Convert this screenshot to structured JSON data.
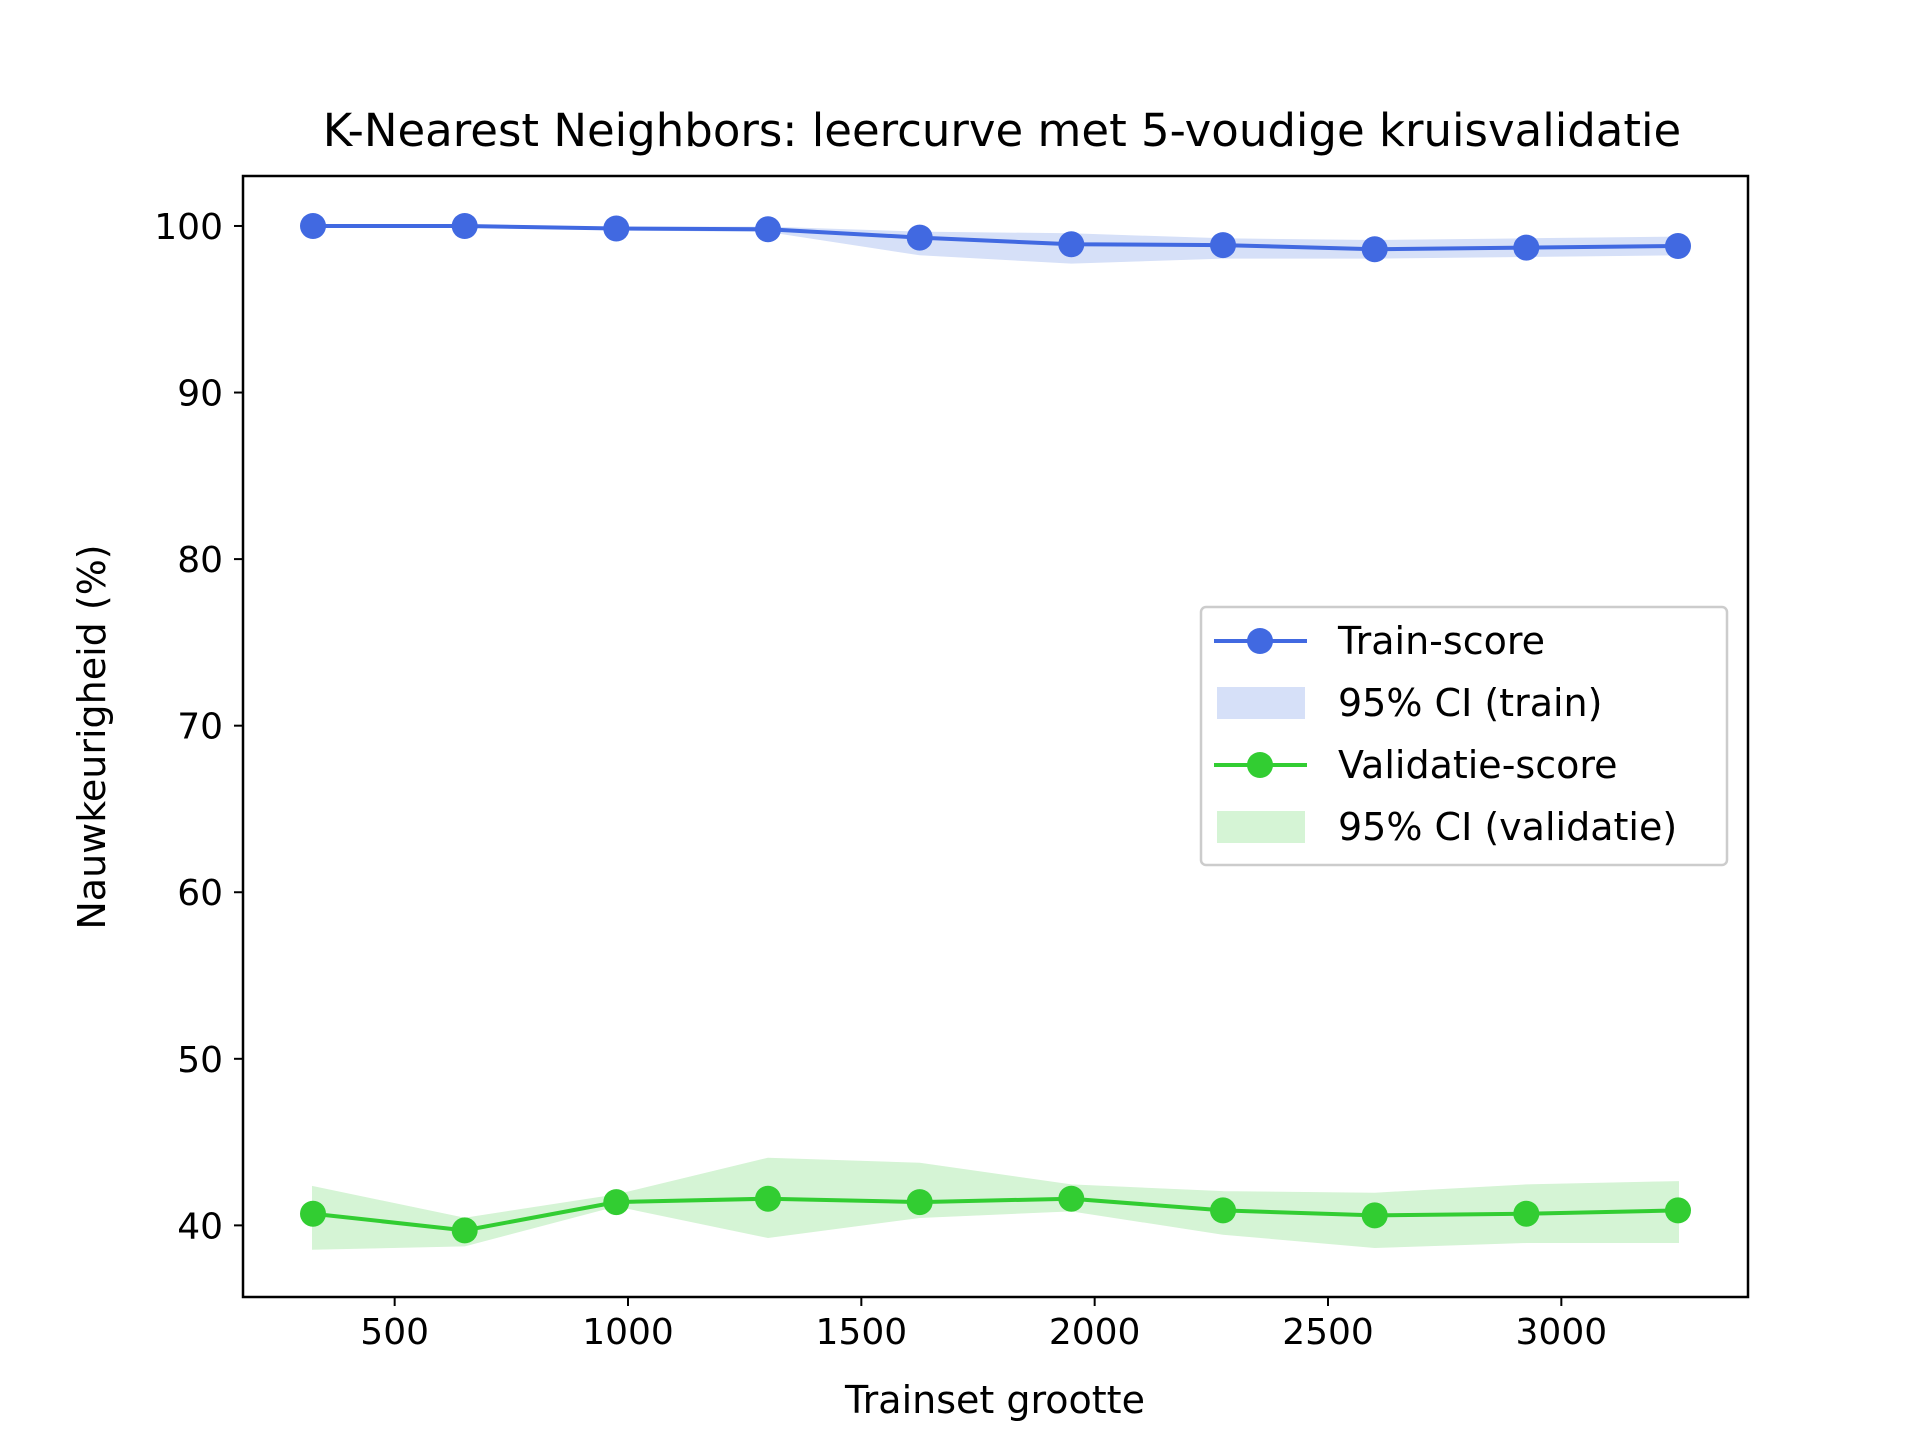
{
  "chart_data": {
    "type": "line",
    "title": "K-Nearest Neighbors: leercurve met 5-voudige kruisvalidatie",
    "xlabel": "Trainset grootte",
    "ylabel": "Nauwkeurigheid (%)",
    "xlim": [
      175,
      3400
    ],
    "ylim": [
      35.7,
      103
    ],
    "xticks": [
      500,
      1000,
      1500,
      2000,
      2500,
      3000
    ],
    "yticks": [
      40,
      50,
      60,
      70,
      80,
      90,
      100
    ],
    "grid": false,
    "legend_position": "center-right",
    "x": [
      325,
      650,
      975,
      1300,
      1625,
      1950,
      2275,
      2600,
      2925,
      3250
    ],
    "series": [
      {
        "name": "Train-score",
        "ci_name": "95% CI (train)",
        "color": "#4169e1",
        "ci_color": "#d6e0f8",
        "values": [
          100.0,
          100.0,
          99.85,
          99.8,
          99.3,
          98.9,
          98.85,
          98.6,
          98.7,
          98.8
        ],
        "ci_lower": [
          100.0,
          100.0,
          99.8,
          99.7,
          98.3,
          97.8,
          98.1,
          98.1,
          98.2,
          98.3
        ],
        "ci_upper": [
          100.0,
          100.0,
          99.9,
          99.9,
          99.6,
          99.5,
          99.2,
          99.1,
          99.2,
          99.3
        ]
      },
      {
        "name": "Validatie-score",
        "ci_name": "95% CI (validatie)",
        "color": "#32cd32",
        "ci_color": "#d5f4d5",
        "values": [
          40.7,
          39.7,
          41.4,
          41.6,
          41.4,
          41.6,
          40.9,
          40.6,
          40.7,
          40.9
        ],
        "ci_lower": [
          38.6,
          38.8,
          41.2,
          39.3,
          40.5,
          40.9,
          39.5,
          38.7,
          39.0,
          39.0
        ],
        "ci_upper": [
          42.3,
          40.4,
          41.8,
          44.0,
          43.7,
          42.4,
          42.0,
          41.9,
          42.4,
          42.6
        ]
      }
    ]
  }
}
